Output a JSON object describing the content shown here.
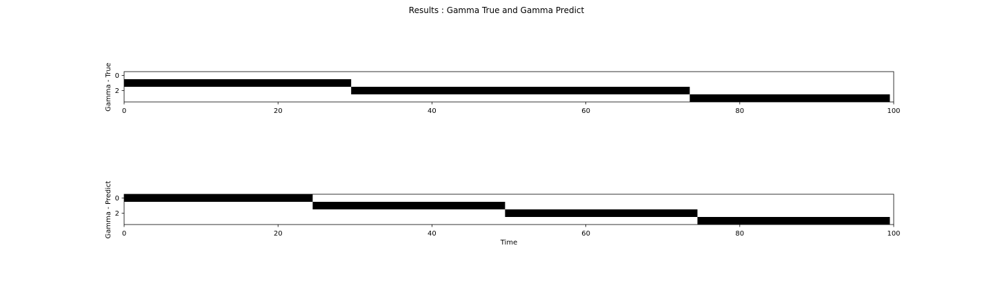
{
  "title": "Results : Gamma True and Gamma Predict",
  "chart_data": [
    {
      "type": "heatmap",
      "ylabel": "Gamma - True",
      "xlabel": "",
      "xlim": [
        0,
        100
      ],
      "ylim": [
        3.5,
        -0.5
      ],
      "xticks": [
        0,
        20,
        40,
        60,
        80,
        100
      ],
      "yticks": [
        0,
        2
      ],
      "grid": false,
      "color_active": "#000000",
      "color_inactive": "#ffffff",
      "segments": [
        {
          "state": 1,
          "x_start": 0,
          "x_end": 29.5
        },
        {
          "state": 2,
          "x_start": 29.5,
          "x_end": 73.5
        },
        {
          "state": 3,
          "x_start": 73.5,
          "x_end": 99.5
        }
      ]
    },
    {
      "type": "heatmap",
      "ylabel": "Gamma - Predict",
      "xlabel": "Time",
      "xlim": [
        0,
        100
      ],
      "ylim": [
        3.5,
        -0.5
      ],
      "xticks": [
        0,
        20,
        40,
        60,
        80,
        100
      ],
      "yticks": [
        0,
        2
      ],
      "grid": false,
      "color_active": "#000000",
      "color_inactive": "#ffffff",
      "segments": [
        {
          "state": 0,
          "x_start": 0,
          "x_end": 24.5
        },
        {
          "state": 1,
          "x_start": 24.5,
          "x_end": 49.5
        },
        {
          "state": 2,
          "x_start": 49.5,
          "x_end": 74.5
        },
        {
          "state": 3,
          "x_start": 74.5,
          "x_end": 99.5
        }
      ]
    }
  ]
}
